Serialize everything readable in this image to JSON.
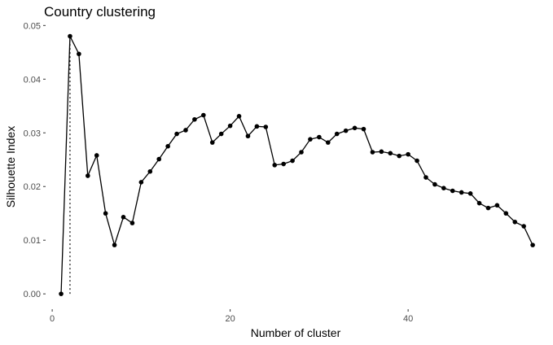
{
  "chart_data": {
    "type": "line",
    "title": "Country clustering",
    "xlabel": "Number of cluster",
    "ylabel": "Silhouette Index",
    "xlim": [
      -0.65,
      55.0
    ],
    "ylim": [
      -0.0024,
      0.0502
    ],
    "x_ticks": [
      0,
      20,
      40
    ],
    "x_tick_labels": [
      "0",
      "20",
      "40"
    ],
    "y_ticks": [
      0.0,
      0.01,
      0.02,
      0.03,
      0.04,
      0.05
    ],
    "y_tick_labels": [
      "0.00",
      "0.01",
      "0.02",
      "0.03",
      "0.04",
      "0.05"
    ],
    "grid": false,
    "markers": true,
    "optimal_k": 2,
    "series": [
      {
        "x": [
          1,
          2,
          3,
          4,
          5,
          6,
          7,
          8,
          9,
          10,
          11,
          12,
          13,
          14,
          15,
          16,
          17,
          18,
          19,
          20,
          21,
          22,
          23,
          24,
          25,
          26,
          27,
          28,
          29,
          30,
          31,
          32,
          33,
          34,
          35,
          36,
          37,
          38,
          39,
          40,
          41,
          42,
          43,
          44,
          45,
          46,
          47,
          48,
          49,
          50,
          51,
          52,
          53,
          54
        ],
        "values": [
          0.0,
          0.048,
          0.0447,
          0.022,
          0.0258,
          0.015,
          0.0091,
          0.0143,
          0.0132,
          0.0208,
          0.0228,
          0.0251,
          0.0275,
          0.0298,
          0.0305,
          0.0325,
          0.0333,
          0.0282,
          0.0298,
          0.0313,
          0.0331,
          0.0294,
          0.0312,
          0.0311,
          0.024,
          0.0242,
          0.0248,
          0.0264,
          0.0288,
          0.0292,
          0.0282,
          0.0298,
          0.0304,
          0.0309,
          0.0307,
          0.0264,
          0.0265,
          0.0262,
          0.0257,
          0.026,
          0.0248,
          0.0217,
          0.0204,
          0.0197,
          0.0192,
          0.0189,
          0.0187,
          0.0169,
          0.016,
          0.0165,
          0.015,
          0.0134,
          0.0126,
          0.0091
        ]
      }
    ]
  }
}
